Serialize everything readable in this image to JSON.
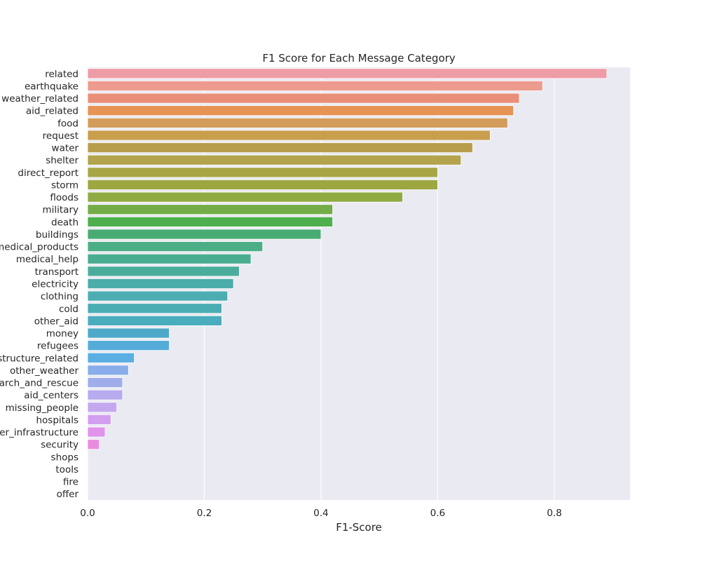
{
  "chart_data": {
    "type": "bar",
    "orientation": "horizontal",
    "title": "F1 Score for Each Message Category",
    "xlabel": "F1-Score",
    "ylabel": "",
    "xlim": [
      0,
      0.93
    ],
    "xticks": [
      "0.0",
      "0.2",
      "0.4",
      "0.6",
      "0.8"
    ],
    "grid": true,
    "background": "#eaeaf2",
    "categories": [
      "related",
      "earthquake",
      "weather_related",
      "aid_related",
      "food",
      "request",
      "water",
      "shelter",
      "direct_report",
      "storm",
      "floods",
      "military",
      "death",
      "buildings",
      "medical_products",
      "medical_help",
      "transport",
      "electricity",
      "clothing",
      "cold",
      "other_aid",
      "money",
      "refugees",
      "infrastructure_related",
      "other_weather",
      "search_and_rescue",
      "aid_centers",
      "missing_people",
      "hospitals",
      "other_infrastructure",
      "security",
      "shops",
      "tools",
      "fire",
      "offer"
    ],
    "values": [
      0.89,
      0.78,
      0.74,
      0.73,
      0.72,
      0.69,
      0.66,
      0.64,
      0.6,
      0.6,
      0.54,
      0.42,
      0.42,
      0.4,
      0.3,
      0.28,
      0.26,
      0.25,
      0.24,
      0.23,
      0.23,
      0.14,
      0.14,
      0.08,
      0.07,
      0.06,
      0.06,
      0.05,
      0.04,
      0.03,
      0.02,
      0.0,
      0.0,
      0.0,
      0.0
    ],
    "colors": [
      "#ee9ca7",
      "#ec9b8e",
      "#e98f79",
      "#e69354",
      "#d39c5b",
      "#c99e4d",
      "#b79d4b",
      "#b2a34c",
      "#a7a644",
      "#9da63f",
      "#8faa43",
      "#74ad48",
      "#4eb04c",
      "#48ab73",
      "#4cae87",
      "#4aad8f",
      "#4aad9b",
      "#4badaa",
      "#4cadb2",
      "#4aadb4",
      "#4aadbd",
      "#4ea9c8",
      "#56acd9",
      "#5aaee3",
      "#88adea",
      "#a0adeb",
      "#b7aaee",
      "#c4a8ef",
      "#d39ef0",
      "#df93ec",
      "#e98ce0"
    ]
  }
}
